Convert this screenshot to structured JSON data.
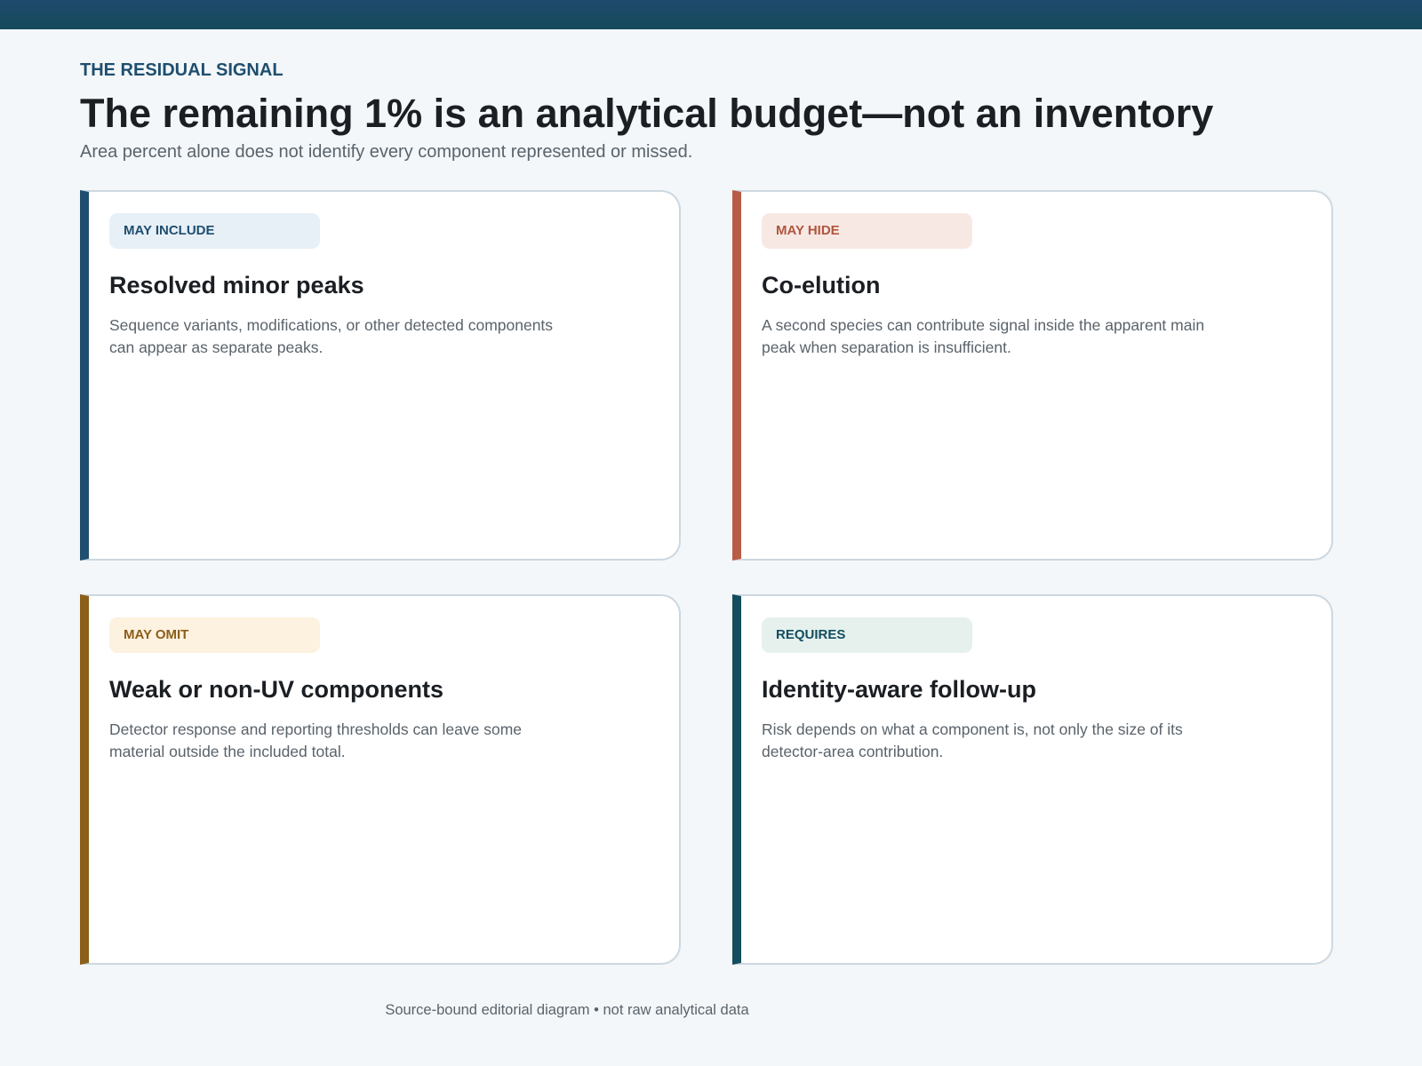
{
  "header": {
    "eyebrow": "THE RESIDUAL SIGNAL",
    "title": "The remaining 1% is an analytical budget—not an inventory",
    "subtitle": "Area percent alone does not identify every component represented or missed."
  },
  "cards": [
    {
      "badge": "MAY INCLUDE",
      "title": "Resolved minor peaks",
      "body": "Sequence variants, modifications, or other detected components can appear as separate peaks."
    },
    {
      "badge": "MAY HIDE",
      "title": "Co-elution",
      "body": "A second species can contribute signal inside the apparent main peak when separation is insufficient."
    },
    {
      "badge": "MAY OMIT",
      "title": "Weak or non-UV components",
      "body": "Detector response and reporting thresholds can leave some material outside the included total."
    },
    {
      "badge": "REQUIRES",
      "title": "Identity-aware follow-up",
      "body": "Risk depends on what a component is, not only the size of its detector-area contribution."
    }
  ],
  "footer": "Source-bound editorial diagram • not raw analytical data"
}
